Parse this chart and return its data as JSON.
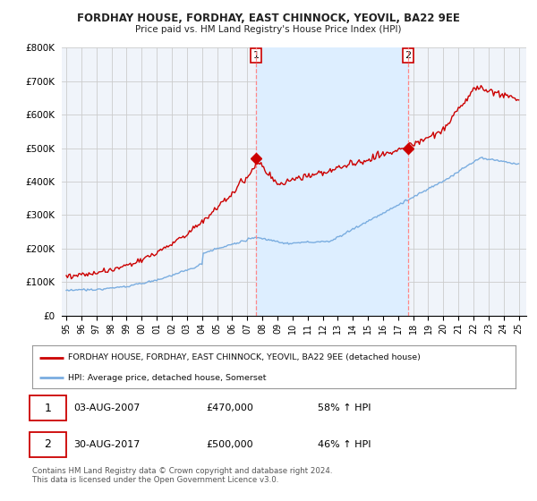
{
  "title": "FORDHAY HOUSE, FORDHAY, EAST CHINNOCK, YEOVIL, BA22 9EE",
  "subtitle": "Price paid vs. HM Land Registry's House Price Index (HPI)",
  "ylim": [
    0,
    800000
  ],
  "yticks": [
    0,
    100000,
    200000,
    300000,
    400000,
    500000,
    600000,
    700000,
    800000
  ],
  "ytick_labels": [
    "£0",
    "£100K",
    "£200K",
    "£300K",
    "£400K",
    "£500K",
    "£600K",
    "£700K",
    "£800K"
  ],
  "xlim_start": 1994.7,
  "xlim_end": 2025.5,
  "marker1_x": 2007.58,
  "marker1_y": 470000,
  "marker2_x": 2017.66,
  "marker2_y": 500000,
  "red_line_color": "#cc0000",
  "blue_line_color": "#7aade0",
  "shade_color": "#ddeeff",
  "marker_line_color": "#ff8888",
  "background_color": "#f0f4fa",
  "grid_color": "#cccccc",
  "legend_label_red": "FORDHAY HOUSE, FORDHAY, EAST CHINNOCK, YEOVIL, BA22 9EE (detached house)",
  "legend_label_blue": "HPI: Average price, detached house, Somerset",
  "annotation1_label": "1",
  "annotation1_date": "03-AUG-2007",
  "annotation1_price": "£470,000",
  "annotation1_hpi": "58% ↑ HPI",
  "annotation2_label": "2",
  "annotation2_date": "30-AUG-2017",
  "annotation2_price": "£500,000",
  "annotation2_hpi": "46% ↑ HPI",
  "footer": "Contains HM Land Registry data © Crown copyright and database right 2024.\nThis data is licensed under the Open Government Licence v3.0.",
  "xtick_years": [
    1995,
    1996,
    1997,
    1998,
    1999,
    2000,
    2001,
    2002,
    2003,
    2004,
    2005,
    2006,
    2007,
    2008,
    2009,
    2010,
    2011,
    2012,
    2013,
    2014,
    2015,
    2016,
    2017,
    2018,
    2019,
    2020,
    2021,
    2022,
    2023,
    2024,
    2025
  ],
  "xtick_labels": [
    "95",
    "96",
    "97",
    "98",
    "99",
    "00",
    "01",
    "02",
    "03",
    "04",
    "05",
    "06",
    "07",
    "08",
    "09",
    "10",
    "11",
    "12",
    "13",
    "14",
    "15",
    "16",
    "17",
    "18",
    "19",
    "20",
    "21",
    "22",
    "23",
    "24",
    "25"
  ]
}
